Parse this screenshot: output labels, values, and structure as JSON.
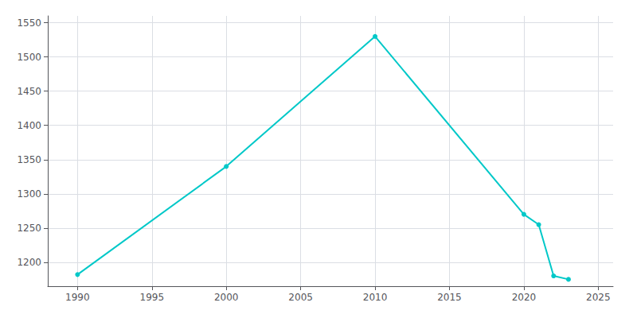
{
  "chart_data": {
    "type": "line",
    "x": [
      1990,
      2000,
      2010,
      2020,
      2021,
      2022,
      2023
    ],
    "values": [
      1182,
      1340,
      1530,
      1270,
      1255,
      1180,
      1175
    ],
    "color": "#00C8C8",
    "marker": "circle",
    "xlim": [
      1988,
      2026
    ],
    "xticks": [
      1990,
      1995,
      2000,
      2005,
      2010,
      2015,
      2020,
      2025
    ],
    "ylim": [
      1165,
      1560
    ],
    "yticks": [
      1200,
      1250,
      1300,
      1350,
      1400,
      1450,
      1500,
      1550
    ],
    "grid": true
  }
}
